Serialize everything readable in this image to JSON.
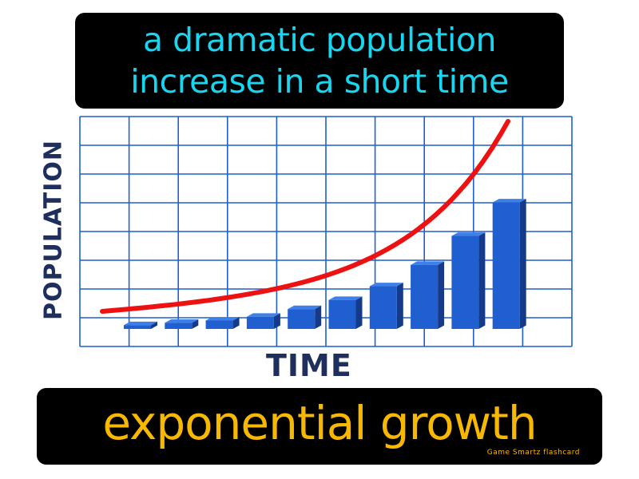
{
  "definition": {
    "lines": [
      "a dramatic population",
      "increase in a short time"
    ],
    "text_color": "#19d6f0"
  },
  "term": {
    "text": "exponential growth",
    "text_color": "#f6b800"
  },
  "brand": "Game Smartz flashcard",
  "chart_data": {
    "type": "bar",
    "xlabel": "TIME",
    "ylabel": "POPULATION",
    "grid": true,
    "categories": [
      "",
      "",
      "",
      "",
      "",
      "",
      "",
      "",
      "",
      ""
    ],
    "values": [
      0.5,
      0.8,
      1.1,
      1.6,
      2.6,
      3.8,
      5.6,
      8.4,
      12.2,
      16.6
    ],
    "ylim": [
      0,
      22
    ],
    "trend_line": true,
    "colors": {
      "bar": "#1f5fd0",
      "bar_side": "#153a8a",
      "bar_top": "#3f7fe8",
      "grid": "#1f5fd0",
      "trend": "#ee1111",
      "axis_label": "#1e2f5e"
    }
  }
}
